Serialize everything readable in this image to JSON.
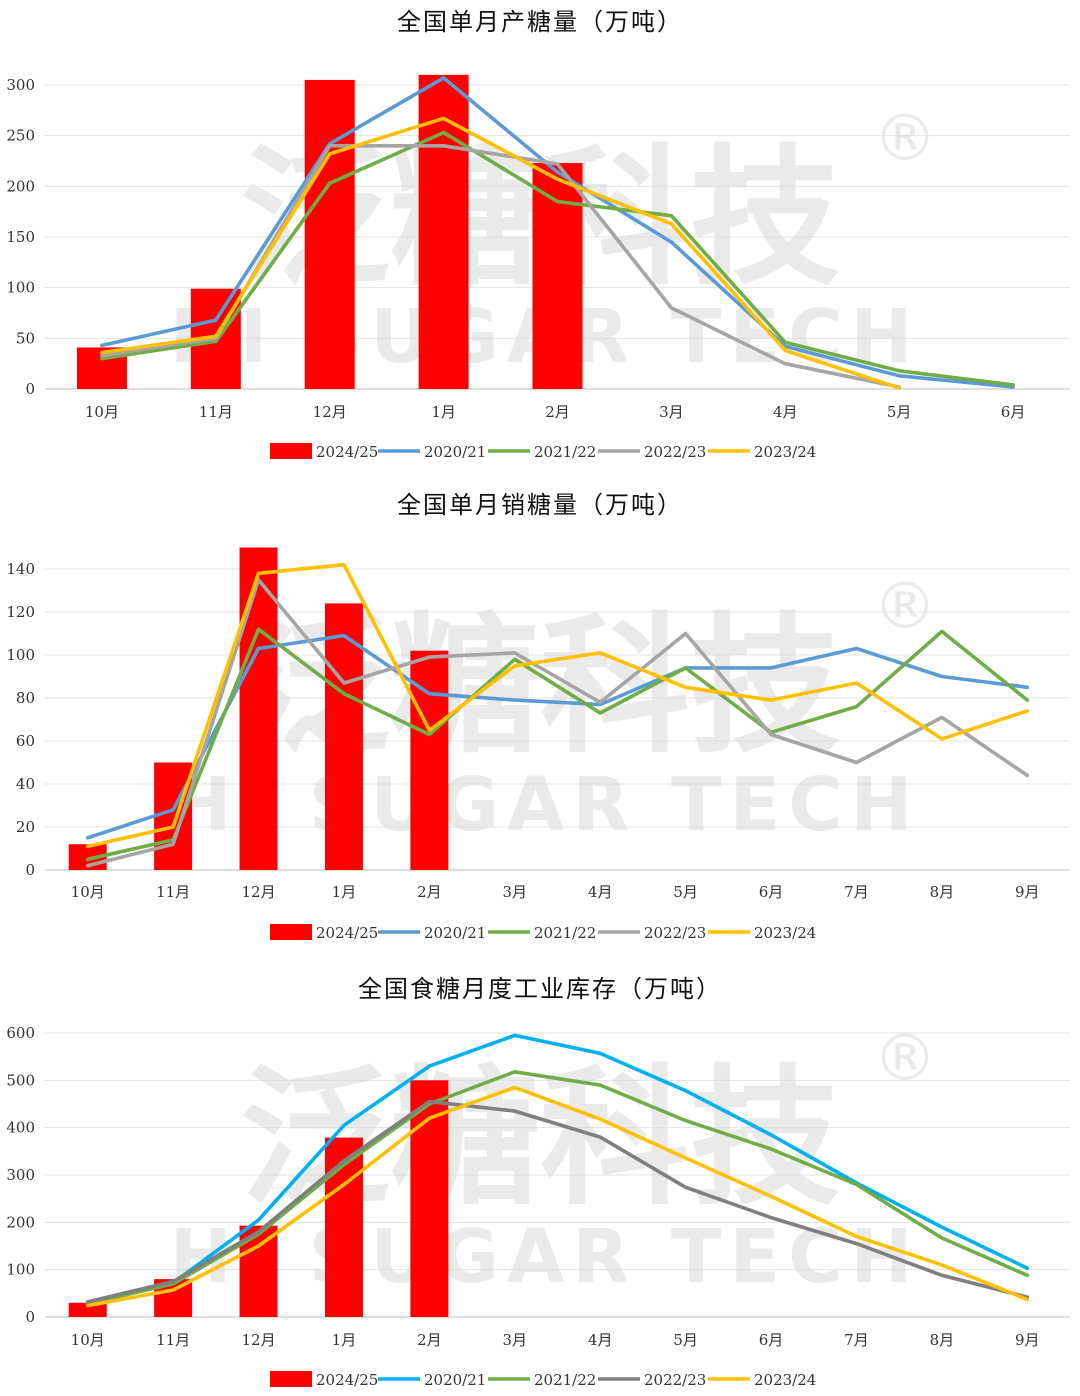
{
  "watermark": {
    "text_cn": "泛糖科技",
    "text_en": "HI SUGAR TECH",
    "mark": "®"
  },
  "colors": {
    "2024/25": "#ff0000",
    "2020/21": "#5b9bd5",
    "2021/22": "#70ad47",
    "2022/23": "#a5a5a5",
    "2023/24": "#ffc000",
    "2020/21_alt": "#00b0f0",
    "2022/23_alt": "#7f7f7f"
  },
  "chart_data": [
    {
      "type": "bar+line",
      "title": "全国单月产糖量（万吨）",
      "categories": [
        "10月",
        "11月",
        "12月",
        "1月",
        "2月",
        "3月",
        "4月",
        "5月",
        "6月"
      ],
      "ylim": [
        0,
        300
      ],
      "yticks": [
        0,
        50,
        100,
        150,
        200,
        250,
        300
      ],
      "grid": true,
      "legend": "bottom",
      "bar_series": {
        "name": "2024/25",
        "values": [
          41,
          99,
          305,
          310,
          223
        ]
      },
      "series": [
        {
          "name": "2020/21",
          "values": [
            43,
            68,
            242,
            307,
            214,
            145,
            42,
            13,
            2
          ]
        },
        {
          "name": "2021/22",
          "values": [
            30,
            47,
            203,
            253,
            185,
            171,
            46,
            18,
            4
          ]
        },
        {
          "name": "2022/23",
          "values": [
            33,
            50,
            240,
            240,
            222,
            80,
            25,
            2,
            null
          ]
        },
        {
          "name": "2023/24",
          "values": [
            36,
            52,
            232,
            267,
            207,
            163,
            38,
            1,
            null
          ]
        }
      ]
    },
    {
      "type": "bar+line",
      "title": "全国单月销糖量（万吨）",
      "categories": [
        "10月",
        "11月",
        "12月",
        "1月",
        "2月",
        "3月",
        "4月",
        "5月",
        "6月",
        "7月",
        "8月",
        "9月"
      ],
      "ylim": [
        0,
        140
      ],
      "yticks": [
        0,
        20,
        40,
        60,
        80,
        100,
        120,
        140
      ],
      "grid": true,
      "legend": "bottom",
      "bar_series": {
        "name": "2024/25",
        "values": [
          12,
          50,
          150,
          124,
          102
        ]
      },
      "series": [
        {
          "name": "2020/21",
          "values": [
            15,
            28,
            103,
            109,
            82,
            79,
            77,
            94,
            94,
            103,
            90,
            85
          ]
        },
        {
          "name": "2021/22",
          "values": [
            5,
            14,
            112,
            82,
            63,
            98,
            73,
            94,
            64,
            76,
            111,
            79
          ]
        },
        {
          "name": "2022/23",
          "values": [
            2,
            12,
            135,
            87,
            99,
            101,
            78,
            110,
            63,
            50,
            71,
            44
          ]
        },
        {
          "name": "2023/24",
          "values": [
            11,
            20,
            138,
            142,
            65,
            95,
            101,
            85,
            79,
            87,
            61,
            74
          ]
        }
      ]
    },
    {
      "type": "bar+line",
      "title": "全国食糖月度工业库存（万吨）",
      "categories": [
        "10月",
        "11月",
        "12月",
        "1月",
        "2月",
        "3月",
        "4月",
        "5月",
        "6月",
        "7月",
        "8月",
        "9月"
      ],
      "ylim": [
        0,
        600
      ],
      "yticks": [
        0,
        100,
        200,
        300,
        400,
        500,
        600
      ],
      "grid": true,
      "legend": "bottom",
      "bar_series": {
        "name": "2024/25",
        "values": [
          30,
          80,
          193,
          379,
          500
        ]
      },
      "series": [
        {
          "name": "2020/21",
          "color_key": "2020/21_alt",
          "values": [
            30,
            72,
            205,
            405,
            530,
            595,
            557,
            478,
            385,
            283,
            190,
            103
          ]
        },
        {
          "name": "2021/22",
          "values": [
            28,
            70,
            175,
            322,
            450,
            518,
            490,
            415,
            355,
            280,
            167,
            88
          ]
        },
        {
          "name": "2022/23",
          "color_key": "2022/23_alt",
          "values": [
            32,
            75,
            180,
            330,
            455,
            435,
            380,
            274,
            210,
            155,
            88,
            42
          ]
        },
        {
          "name": "2023/24",
          "values": [
            24,
            57,
            150,
            280,
            420,
            485,
            418,
            336,
            255,
            170,
            110,
            37
          ]
        }
      ]
    }
  ]
}
